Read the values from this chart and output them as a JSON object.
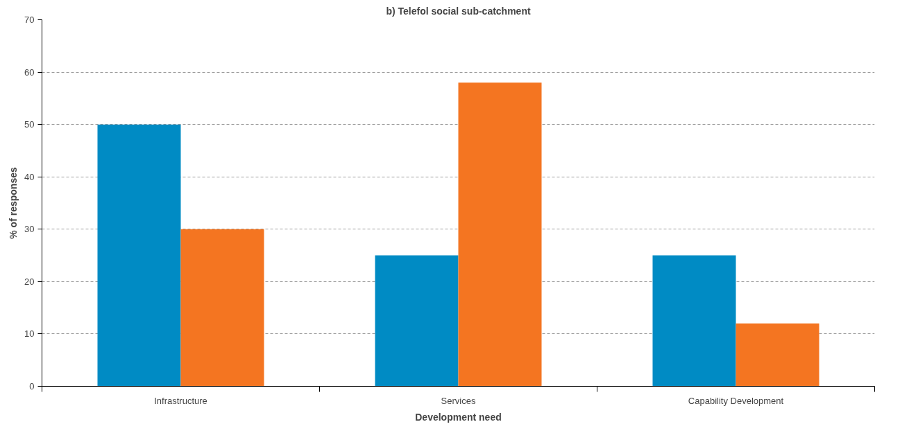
{
  "chart_data": {
    "type": "bar",
    "title": "b) Telefol social sub-catchment",
    "xlabel": "Development need",
    "ylabel": "% of responses",
    "categories": [
      "Infrastructure",
      "Services",
      "Capability Development"
    ],
    "series": [
      {
        "color": "#008bc4",
        "values": [
          50,
          25,
          25
        ]
      },
      {
        "color": "#f47521",
        "values": [
          30,
          58,
          12
        ]
      }
    ],
    "ylim": [
      0,
      70
    ],
    "yticks": [
      0,
      10,
      20,
      30,
      40,
      50,
      60,
      70
    ],
    "grid": "y"
  }
}
